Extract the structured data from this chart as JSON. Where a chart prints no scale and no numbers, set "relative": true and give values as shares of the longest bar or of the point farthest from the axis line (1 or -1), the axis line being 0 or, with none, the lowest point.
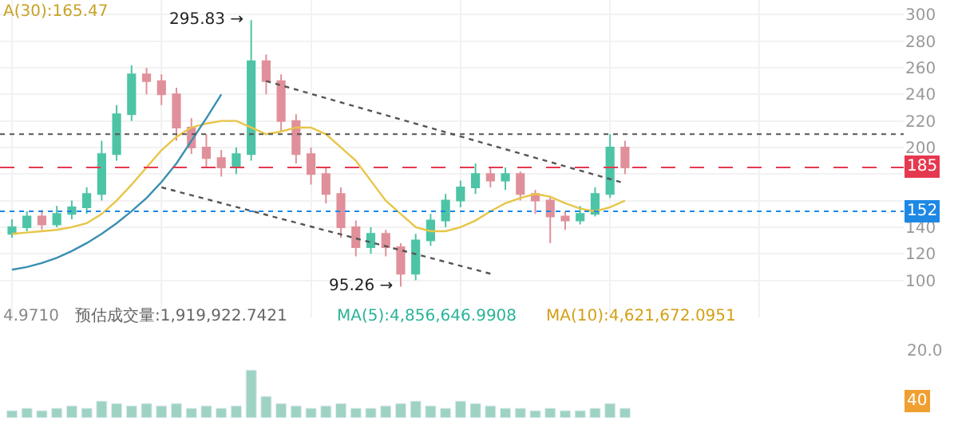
{
  "chart_data": [
    {
      "type": "candlestick",
      "title": "A(30):165.47",
      "categories": [
        null,
        null,
        null,
        null,
        null,
        null,
        null,
        null,
        null,
        null,
        null,
        null,
        null,
        null,
        null,
        null,
        null,
        null,
        null,
        null,
        null,
        null,
        null,
        null,
        null,
        null,
        null,
        null,
        null,
        null,
        null,
        null,
        null,
        null,
        null,
        null,
        null,
        null,
        null,
        null,
        null,
        null
      ],
      "ohlc": [
        [
          135,
          146,
          132,
          140
        ],
        [
          140,
          152,
          137,
          148
        ],
        [
          148,
          153,
          138,
          142
        ],
        [
          142,
          156,
          140,
          150
        ],
        [
          150,
          160,
          146,
          155
        ],
        [
          155,
          170,
          150,
          165
        ],
        [
          165,
          205,
          160,
          195
        ],
        [
          195,
          232,
          190,
          225
        ],
        [
          225,
          262,
          220,
          255
        ],
        [
          255,
          260,
          240,
          250
        ],
        [
          250,
          255,
          232,
          240
        ],
        [
          240,
          245,
          205,
          215
        ],
        [
          215,
          222,
          195,
          200
        ],
        [
          200,
          210,
          185,
          192
        ],
        [
          192,
          198,
          178,
          185
        ],
        [
          185,
          200,
          180,
          195
        ],
        [
          195,
          295.83,
          190,
          265
        ],
        [
          265,
          270,
          240,
          250
        ],
        [
          250,
          255,
          212,
          220
        ],
        [
          220,
          225,
          188,
          195
        ],
        [
          195,
          200,
          172,
          180
        ],
        [
          180,
          185,
          158,
          165
        ],
        [
          165,
          170,
          132,
          140
        ],
        [
          140,
          145,
          118,
          125
        ],
        [
          125,
          140,
          120,
          135
        ],
        [
          135,
          138,
          118,
          125
        ],
        [
          125,
          128,
          95.26,
          105
        ],
        [
          105,
          135,
          100,
          130
        ],
        [
          130,
          150,
          126,
          145
        ],
        [
          145,
          165,
          140,
          160
        ],
        [
          160,
          175,
          155,
          170
        ],
        [
          170,
          188,
          165,
          180
        ],
        [
          180,
          185,
          170,
          175
        ],
        [
          175,
          185,
          168,
          180
        ],
        [
          180,
          182,
          160,
          165
        ],
        [
          165,
          168,
          150,
          160
        ],
        [
          160,
          163,
          128,
          148
        ],
        [
          148,
          152,
          138,
          145
        ],
        [
          145,
          156,
          142,
          150
        ],
        [
          150,
          170,
          148,
          165
        ],
        [
          165,
          210,
          162,
          200
        ],
        [
          200,
          205,
          180,
          185
        ]
      ],
      "colors": [
        "#4dc4a6",
        "#4dc4a6",
        "#e0909a",
        "#4dc4a6",
        "#4dc4a6",
        "#4dc4a6",
        "#4dc4a6",
        "#4dc4a6",
        "#4dc4a6",
        "#e0909a",
        "#e0909a",
        "#e0909a",
        "#e0909a",
        "#e0909a",
        "#e0909a",
        "#4dc4a6",
        "#4dc4a6",
        "#e0909a",
        "#e0909a",
        "#e0909a",
        "#e0909a",
        "#e0909a",
        "#e0909a",
        "#e0909a",
        "#4dc4a6",
        "#e0909a",
        "#e0909a",
        "#4dc4a6",
        "#4dc4a6",
        "#4dc4a6",
        "#4dc4a6",
        "#4dc4a6",
        "#e0909a",
        "#4dc4a6",
        "#e0909a",
        "#e0909a",
        "#e0909a",
        "#e0909a",
        "#4dc4a6",
        "#4dc4a6",
        "#4dc4a6",
        "#e0909a"
      ],
      "series": [
        {
          "type": "line",
          "color": "#e8c547",
          "values": [
            135,
            136,
            137,
            138,
            140,
            143,
            150,
            160,
            172,
            185,
            198,
            208,
            215,
            218,
            220,
            220,
            215,
            210,
            212,
            215,
            215,
            210,
            200,
            190,
            175,
            160,
            150,
            140,
            137,
            137,
            140,
            145,
            152,
            158,
            162,
            165,
            163,
            158,
            154,
            152,
            155,
            160
          ]
        },
        {
          "type": "line",
          "color": "#3a8fb0",
          "values": [
            108,
            110,
            113,
            117,
            122,
            128,
            135,
            143,
            152,
            162,
            174,
            188,
            205,
            222,
            240,
            null,
            null,
            null,
            null,
            null,
            null,
            null,
            null,
            null,
            null,
            null,
            null,
            null,
            null,
            null,
            null,
            null,
            null,
            null,
            null,
            null,
            null,
            null,
            null,
            null,
            null,
            null
          ]
        },
        {
          "type": "line",
          "color": "#555555",
          "line_style": "dotted",
          "values": [
            null,
            null,
            null,
            null,
            null,
            null,
            null,
            null,
            null,
            null,
            null,
            null,
            null,
            null,
            null,
            null,
            null,
            250,
            null,
            null,
            null,
            null,
            null,
            null,
            null,
            null,
            null,
            null,
            null,
            null,
            null,
            null,
            null,
            null,
            null,
            null,
            null,
            null,
            null,
            null,
            null,
            173
          ]
        },
        {
          "type": "line",
          "color": "#555555",
          "line_style": "dotted",
          "values": [
            null,
            null,
            null,
            null,
            null,
            null,
            null,
            null,
            null,
            null,
            170,
            null,
            null,
            null,
            null,
            null,
            null,
            null,
            null,
            null,
            null,
            null,
            null,
            null,
            null,
            null,
            null,
            null,
            null,
            null,
            null,
            null,
            105,
            null,
            null,
            null,
            null,
            null,
            null,
            null,
            null,
            null
          ]
        }
      ],
      "ylim": [
        72,
        311
      ],
      "yticks": [
        100,
        120,
        140,
        {
          "value": 160,
          "label": null
        },
        {
          "value": 180,
          "label": null
        },
        200,
        220,
        240,
        260,
        280,
        300
      ],
      "ref_lines": [
        {
          "axis": "y",
          "value": 185,
          "label": "185",
          "color": "#e5394f",
          "line_style": "dashed"
        },
        {
          "axis": "y",
          "value": 152,
          "label": "152",
          "color": "#1e88e5",
          "line_style": "dotted"
        },
        {
          "axis": "y",
          "value": 210,
          "color": "#555555",
          "line_style": "dotted"
        }
      ],
      "annotations": [
        "295.83 →",
        "95.26 →"
      ],
      "tick_labels": "y",
      "grid": true
    },
    {
      "type": "bar",
      "relative": true,
      "categories": [
        null,
        null,
        null,
        null,
        null,
        null,
        null,
        null,
        null,
        null,
        null,
        null,
        null,
        null,
        null,
        null,
        null,
        null,
        null,
        null,
        null,
        null,
        null,
        null,
        null,
        null,
        null,
        null,
        null,
        null,
        null,
        null,
        null,
        null,
        null,
        null,
        null,
        null,
        null,
        null,
        null,
        null
      ],
      "values": [
        0.15,
        0.2,
        0.15,
        0.2,
        0.25,
        0.2,
        0.35,
        0.3,
        0.25,
        0.3,
        0.25,
        0.3,
        0.2,
        0.25,
        0.2,
        0.25,
        1,
        0.45,
        0.3,
        0.25,
        0.2,
        0.25,
        0.3,
        0.2,
        0.2,
        0.25,
        0.3,
        0.35,
        0.25,
        0.2,
        0.35,
        0.3,
        0.25,
        0.2,
        0.2,
        0.15,
        0.2,
        0.15,
        0.15,
        0.2,
        0.3,
        0.2
      ],
      "color": "#9ed3c4",
      "annotations": [
        "4.9710",
        "预估成交量:1,919,922.7421",
        "MA(5):4,856,646.9908",
        "MA(10):4,621,672.0951",
        "20.0",
        "40"
      ],
      "tick_labels": false
    }
  ]
}
